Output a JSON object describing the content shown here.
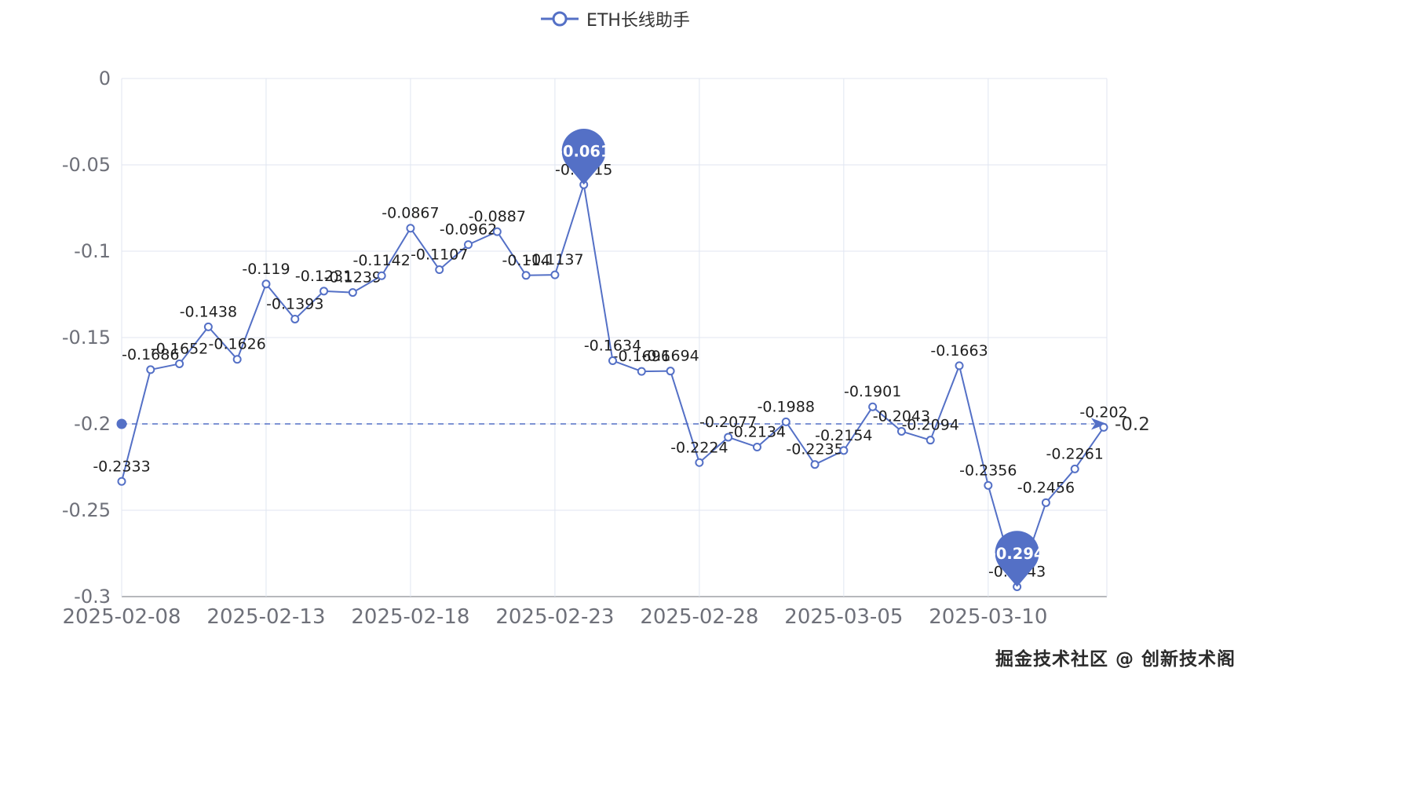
{
  "legend": {
    "label": "ETH长线助手"
  },
  "watermark": "掘金技术社区 @ 创新技术阁",
  "colors": {
    "series": "#5470c6",
    "grid": "#e0e6f1",
    "axis_line": "#6e7079",
    "axis_label": "#6e7079",
    "point_label": "#1f1f1f",
    "pin_text": "#ffffff",
    "markline_label": "#333333",
    "background": "#ffffff"
  },
  "chart_data": {
    "type": "line",
    "title": "ETH长线助手",
    "series_name": "ETH长线助手",
    "x": [
      "2025-02-08",
      "2025-02-09",
      "2025-02-10",
      "2025-02-11",
      "2025-02-12",
      "2025-02-13",
      "2025-02-14",
      "2025-02-15",
      "2025-02-16",
      "2025-02-17",
      "2025-02-18",
      "2025-02-19",
      "2025-02-20",
      "2025-02-21",
      "2025-02-22",
      "2025-02-23",
      "2025-02-24",
      "2025-02-25",
      "2025-02-26",
      "2025-02-27",
      "2025-02-28",
      "2025-03-01",
      "2025-03-02",
      "2025-03-03",
      "2025-03-04",
      "2025-03-05",
      "2025-03-06",
      "2025-03-07",
      "2025-03-08",
      "2025-03-09",
      "2025-03-10",
      "2025-03-11",
      "2025-03-12",
      "2025-03-13",
      "2025-03-14"
    ],
    "values": [
      -0.2333,
      -0.1686,
      -0.1652,
      -0.1438,
      -0.1626,
      -0.119,
      -0.1393,
      -0.1231,
      -0.1239,
      -0.1142,
      -0.0867,
      -0.1107,
      -0.0962,
      -0.0887,
      -0.114,
      -0.1137,
      -0.0615,
      -0.1634,
      -0.1696,
      -0.1694,
      -0.2224,
      -0.2077,
      -0.2134,
      -0.1988,
      -0.2235,
      -0.2154,
      -0.1901,
      -0.2043,
      -0.2094,
      -0.1663,
      -0.2356,
      -0.2943,
      -0.2456,
      -0.2261,
      -0.202
    ],
    "x_ticks": [
      "2025-02-08",
      "2025-02-13",
      "2025-02-18",
      "2025-02-23",
      "2025-02-28",
      "2025-03-05",
      "2025-03-10"
    ],
    "y_tick_values": [
      0,
      -0.05,
      -0.1,
      -0.15,
      -0.2,
      -0.25,
      -0.3
    ],
    "y_tick_labels": [
      "0",
      "-0.05",
      "-0.1",
      "-0.15",
      "-0.2",
      "-0.25",
      "-0.3"
    ],
    "ylim": [
      -0.3,
      0
    ],
    "grid": true,
    "legend_position": "top",
    "markline": {
      "value": -0.2,
      "label": "-0.2"
    },
    "markpoints": [
      {
        "type": "max",
        "value": -0.0615,
        "label": "-0.061"
      },
      {
        "type": "min",
        "value": -0.2943,
        "label": "-0.294"
      }
    ]
  }
}
